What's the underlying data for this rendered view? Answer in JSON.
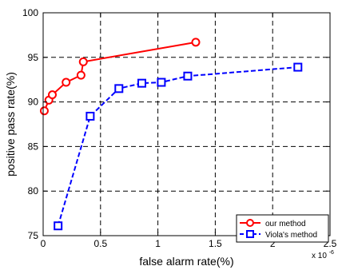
{
  "chart_data": {
    "type": "line",
    "title": "",
    "xlabel": "false alarm rate(%)",
    "ylabel": "positive pass rate(%)",
    "x_exponent_label": "x 10",
    "x_exponent_power": "-6",
    "xlim": [
      0,
      2.5
    ],
    "ylim": [
      75,
      100
    ],
    "xticks": [
      "0",
      "0.5",
      "1",
      "1.5",
      "2",
      "2.5"
    ],
    "yticks": [
      "75",
      "80",
      "85",
      "90",
      "95",
      "100"
    ],
    "grid": true,
    "legend_position": "bottom-right",
    "series": [
      {
        "name": "our method",
        "color": "#ff0000",
        "line_style": "solid",
        "marker": "circle",
        "points": [
          [
            0.01,
            89.0
          ],
          [
            0.05,
            90.2
          ],
          [
            0.08,
            90.8
          ],
          [
            0.2,
            92.2
          ],
          [
            0.33,
            93.0
          ],
          [
            0.35,
            94.5
          ],
          [
            1.33,
            96.7
          ]
        ]
      },
      {
        "name": "Viola's method",
        "color": "#0000ff",
        "line_style": "dashed",
        "marker": "square",
        "points": [
          [
            0.13,
            76.1
          ],
          [
            0.41,
            88.4
          ],
          [
            0.66,
            91.5
          ],
          [
            0.86,
            92.1
          ],
          [
            1.03,
            92.2
          ],
          [
            1.26,
            92.9
          ],
          [
            2.22,
            93.9
          ]
        ]
      }
    ]
  }
}
